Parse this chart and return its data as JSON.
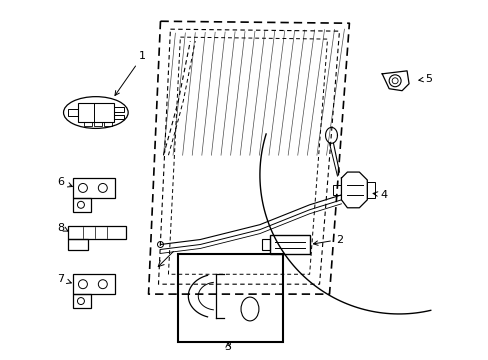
{
  "background_color": "#ffffff",
  "figure_width": 4.89,
  "figure_height": 3.6,
  "dpi": 100,
  "line_color": "#000000",
  "font_size": 8
}
